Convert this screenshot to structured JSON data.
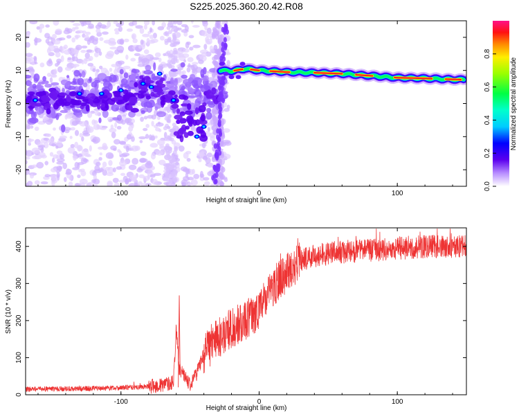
{
  "title": "S225.2025.360.20.42.R08",
  "chart_data": [
    {
      "type": "heatmap",
      "xlabel": "Height of straight line (km)",
      "ylabel": "Frequency (Hz)",
      "xlim": [
        -169,
        150
      ],
      "ylim": [
        -25,
        25
      ],
      "xticks": [
        "-100",
        "0",
        "100"
      ],
      "xtick_values": [
        -100,
        0,
        100
      ],
      "yticks": [
        "-20",
        "-10",
        "0",
        "10",
        "20"
      ],
      "ytick_values": [
        -20,
        -10,
        0,
        10,
        20
      ],
      "colorbar": {
        "label": "Normalized spectral amplitude",
        "range": [
          0,
          1
        ],
        "ticks": [
          "0.0",
          "0.2",
          "0.4",
          "0.6",
          "0.8"
        ],
        "tick_values": [
          0.0,
          0.2,
          0.4,
          0.6,
          0.8
        ]
      },
      "ridge": {
        "x": [
          -28,
          -20,
          -10,
          0,
          20,
          40,
          60,
          80,
          100,
          120,
          140,
          148
        ],
        "y": [
          10.0,
          9.8,
          10.5,
          10.0,
          9.5,
          9.3,
          9.0,
          8.4,
          7.8,
          7.6,
          7.3,
          7.2
        ]
      }
    },
    {
      "type": "line",
      "xlabel": "Height of straight line (km)",
      "ylabel": "SNR (10 * v/v)",
      "xlim": [
        -169,
        150
      ],
      "ylim": [
        0,
        450
      ],
      "xticks": [
        "-100",
        "0",
        "100"
      ],
      "xtick_values": [
        -100,
        0,
        100
      ],
      "yticks": [
        "0",
        "100",
        "200",
        "300",
        "400"
      ],
      "ytick_values": [
        0,
        100,
        200,
        300,
        400
      ],
      "color": "#ee3333",
      "trend": {
        "x": [
          -169,
          -120,
          -90,
          -70,
          -62,
          -60,
          -58,
          -50,
          -45,
          -40,
          -30,
          -20,
          -10,
          0,
          10,
          20,
          30,
          40,
          60,
          80,
          100,
          120,
          150
        ],
        "y": [
          15,
          17,
          20,
          25,
          35,
          180,
          70,
          30,
          60,
          110,
          150,
          180,
          200,
          230,
          290,
          330,
          360,
          375,
          385,
          390,
          395,
          400,
          398
        ]
      }
    }
  ]
}
